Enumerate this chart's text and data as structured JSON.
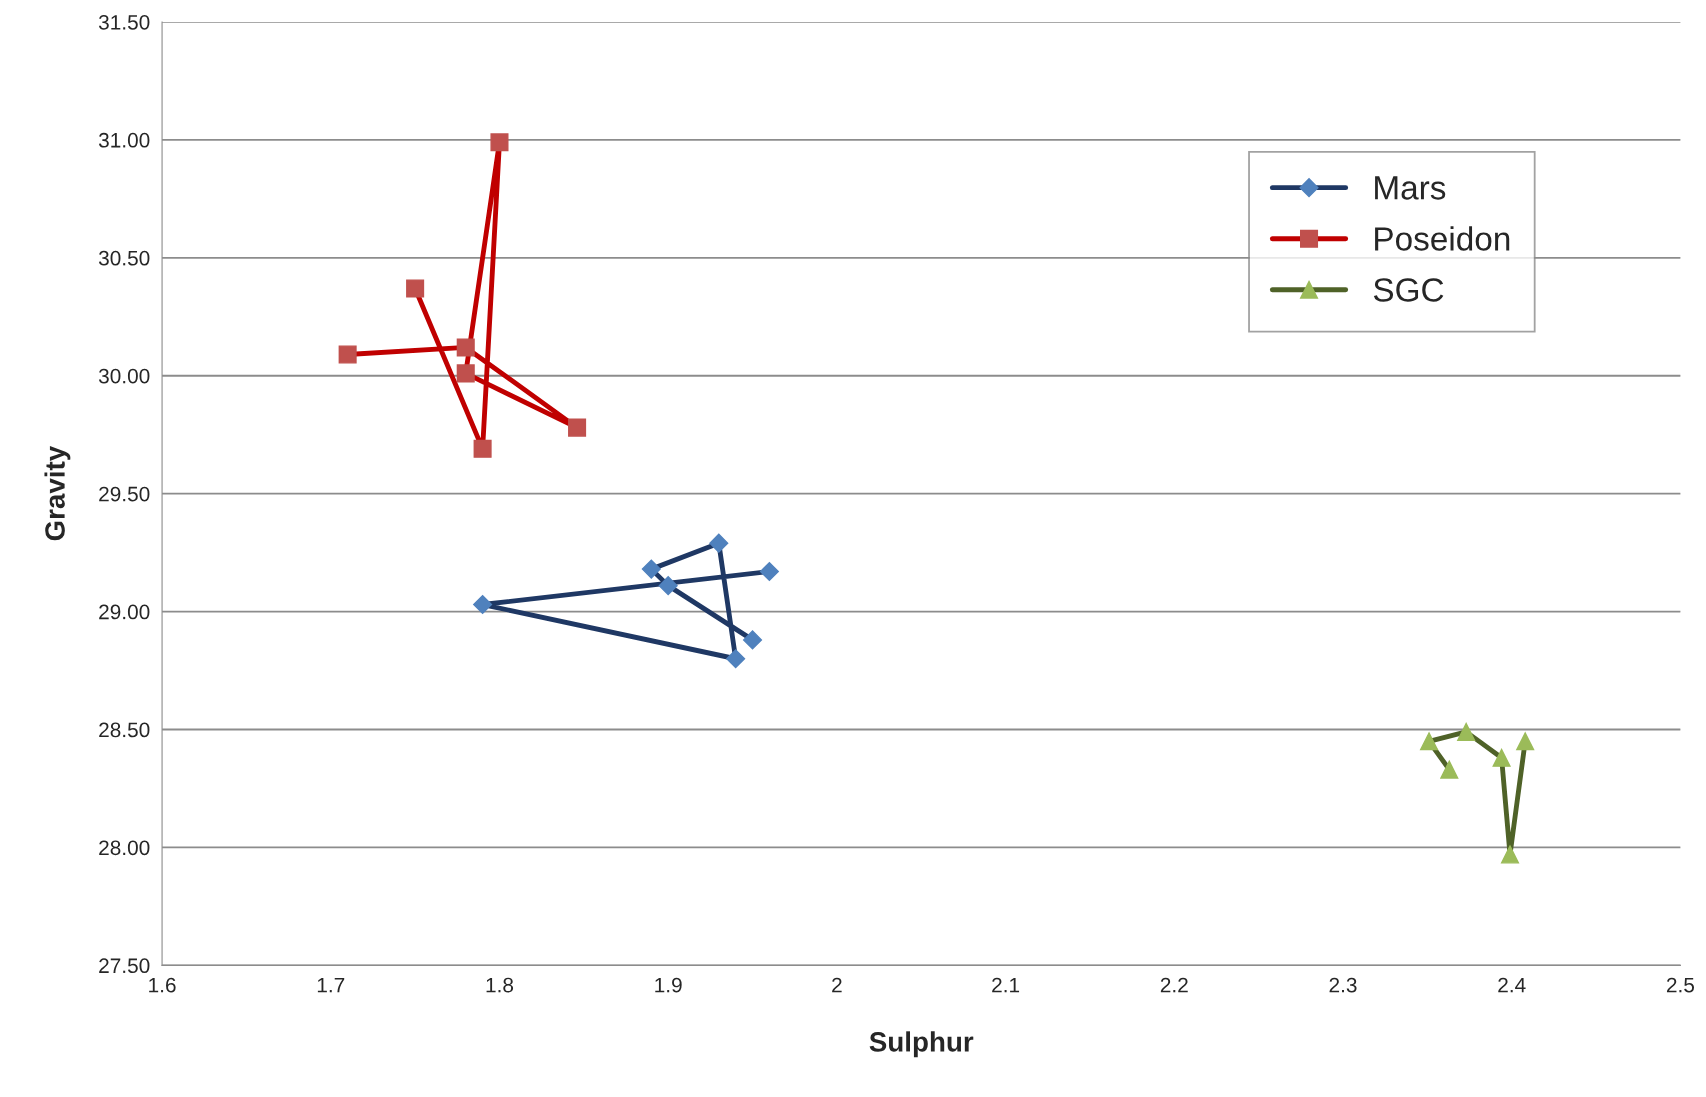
{
  "chart_data": {
    "type": "line",
    "xlabel": "Sulphur",
    "ylabel": "Gravity",
    "xlim": [
      1.6,
      2.5
    ],
    "xticks": [
      1.6,
      1.7,
      1.8,
      1.9,
      2,
      2.1,
      2.2,
      2.3,
      2.4,
      2.5
    ],
    "ylim": [
      27.5,
      31.5
    ],
    "yticks": [
      {
        "value": 27.5,
        "label": "27.50"
      },
      {
        "value": 28,
        "label": "28.00"
      },
      {
        "value": 28.5,
        "label": "28.50"
      },
      {
        "value": 29,
        "label": "29.00"
      },
      {
        "value": 29.5,
        "label": "29.50"
      },
      {
        "value": 30,
        "label": "30.00"
      },
      {
        "value": 30.5,
        "label": "30.50"
      },
      {
        "value": 31,
        "label": "31.00"
      },
      {
        "value": 31.5,
        "label": "31.50"
      }
    ],
    "grid": "y",
    "legend": "top right",
    "line_style": "solid",
    "series": [
      {
        "name": "Mars",
        "color": "#1f3864",
        "colors": [
          "#4f81bd",
          "#4f81bd",
          "#4f81bd",
          "#4f81bd",
          "#4f81bd",
          "#4f81bd",
          "#4f81bd"
        ],
        "marker": "diamond",
        "x": [
          1.95,
          1.9,
          1.89,
          1.93,
          1.94,
          1.79,
          1.96
        ],
        "values": [
          28.88,
          29.11,
          29.18,
          29.29,
          28.8,
          29.03,
          29.17
        ]
      },
      {
        "name": "Poseidon",
        "color": "#c00000",
        "colors": [
          "#c0504d",
          "#c0504d",
          "#c0504d",
          "#c0504d",
          "#c0504d",
          "#c0504d",
          "#c0504d"
        ],
        "marker": "square",
        "x": [
          1.71,
          1.78,
          1.846,
          1.78,
          1.8,
          1.79,
          1.75
        ],
        "values": [
          30.09,
          30.12,
          29.78,
          30.01,
          30.99,
          29.69,
          30.37
        ]
      },
      {
        "name": "SGC",
        "color": "#4f6228",
        "colors": [
          "#9bbb59",
          "#9bbb59",
          "#9bbb59",
          "#9bbb59",
          "#9bbb59",
          "#9bbb59"
        ],
        "marker": "triangle",
        "x": [
          2.363,
          2.351,
          2.373,
          2.394,
          2.399,
          2.408
        ],
        "values": [
          28.33,
          28.45,
          28.49,
          28.38,
          27.97,
          28.45
        ]
      }
    ]
  }
}
